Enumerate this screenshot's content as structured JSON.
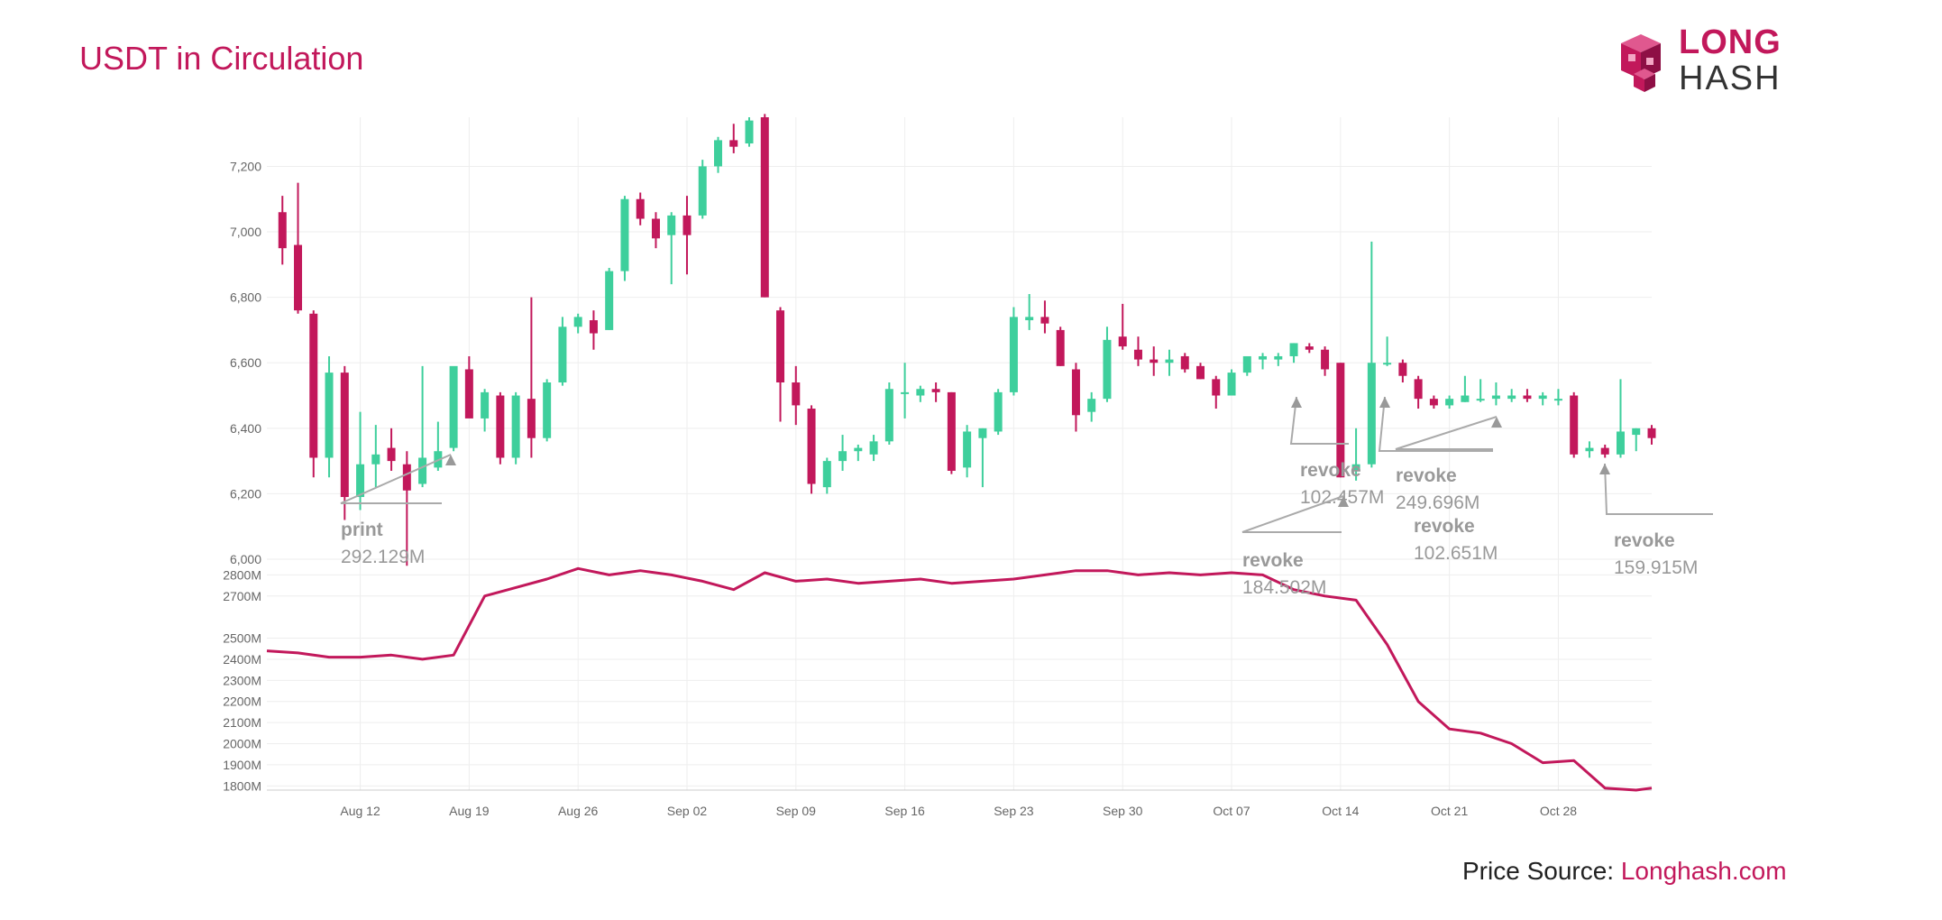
{
  "title": "USDT in Circulation",
  "logo": {
    "line1": "LONG",
    "line2": "HASH"
  },
  "source": {
    "label": "Price Source: ",
    "link": "Longhash.com"
  },
  "colors": {
    "up": "#3ecf9c",
    "down": "#c2185b",
    "supply": "#c2185b",
    "text": "#999999",
    "grid": "#eeeeee"
  },
  "chart_data": [
    {
      "type": "candlestick",
      "title": "",
      "y_ticks": [
        6000,
        6200,
        6400,
        6600,
        6800,
        7000,
        7200
      ],
      "y_tick_labels": [
        "6,000",
        "6,200",
        "6,400",
        "6,600",
        "6,800",
        "7,000",
        "7,200"
      ],
      "ylim": [
        6000,
        7350
      ],
      "date_range": [
        "Aug 06",
        "Nov 03"
      ],
      "candles": [
        {
          "d": "Aug 07",
          "o": 7060,
          "h": 7110,
          "l": 6900,
          "c": 6950
        },
        {
          "d": "Aug 08",
          "o": 6960,
          "h": 7150,
          "l": 6750,
          "c": 6760
        },
        {
          "d": "Aug 09",
          "o": 6750,
          "h": 6760,
          "l": 6250,
          "c": 6310
        },
        {
          "d": "Aug 10",
          "o": 6310,
          "h": 6620,
          "l": 6250,
          "c": 6570
        },
        {
          "d": "Aug 11",
          "o": 6570,
          "h": 6590,
          "l": 6120,
          "c": 6190
        },
        {
          "d": "Aug 12",
          "o": 6190,
          "h": 6450,
          "l": 6150,
          "c": 6290
        },
        {
          "d": "Aug 13",
          "o": 6290,
          "h": 6410,
          "l": 6220,
          "c": 6320
        },
        {
          "d": "Aug 14",
          "o": 6340,
          "h": 6400,
          "l": 6270,
          "c": 6300
        },
        {
          "d": "Aug 15",
          "o": 6290,
          "h": 6330,
          "l": 5980,
          "c": 6210
        },
        {
          "d": "Aug 16",
          "o": 6230,
          "h": 6590,
          "l": 6220,
          "c": 6310
        },
        {
          "d": "Aug 17",
          "o": 6280,
          "h": 6420,
          "l": 6270,
          "c": 6330
        },
        {
          "d": "Aug 18",
          "o": 6340,
          "h": 6580,
          "l": 6330,
          "c": 6590
        },
        {
          "d": "Aug 19",
          "o": 6580,
          "h": 6620,
          "l": 6440,
          "c": 6430
        },
        {
          "d": "Aug 20",
          "o": 6430,
          "h": 6520,
          "l": 6390,
          "c": 6510
        },
        {
          "d": "Aug 21",
          "o": 6500,
          "h": 6510,
          "l": 6290,
          "c": 6310
        },
        {
          "d": "Aug 22",
          "o": 6310,
          "h": 6510,
          "l": 6290,
          "c": 6500
        },
        {
          "d": "Aug 23",
          "o": 6490,
          "h": 6800,
          "l": 6310,
          "c": 6370
        },
        {
          "d": "Aug 24",
          "o": 6370,
          "h": 6550,
          "l": 6360,
          "c": 6540
        },
        {
          "d": "Aug 25",
          "o": 6540,
          "h": 6740,
          "l": 6530,
          "c": 6710
        },
        {
          "d": "Aug 26",
          "o": 6710,
          "h": 6750,
          "l": 6690,
          "c": 6740
        },
        {
          "d": "Aug 27",
          "o": 6730,
          "h": 6760,
          "l": 6640,
          "c": 6690
        },
        {
          "d": "Aug 28",
          "o": 6700,
          "h": 6890,
          "l": 6700,
          "c": 6880
        },
        {
          "d": "Aug 29",
          "o": 6880,
          "h": 7110,
          "l": 6850,
          "c": 7100
        },
        {
          "d": "Aug 30",
          "o": 7100,
          "h": 7120,
          "l": 7020,
          "c": 7040
        },
        {
          "d": "Aug 31",
          "o": 7040,
          "h": 7060,
          "l": 6950,
          "c": 6980
        },
        {
          "d": "Sep 01",
          "o": 6990,
          "h": 7060,
          "l": 6840,
          "c": 7050
        },
        {
          "d": "Sep 02",
          "o": 7050,
          "h": 7110,
          "l": 6870,
          "c": 6990
        },
        {
          "d": "Sep 03",
          "o": 7050,
          "h": 7220,
          "l": 7040,
          "c": 7200
        },
        {
          "d": "Sep 04",
          "o": 7200,
          "h": 7290,
          "l": 7180,
          "c": 7280
        },
        {
          "d": "Sep 05",
          "o": 7280,
          "h": 7330,
          "l": 7240,
          "c": 7260
        },
        {
          "d": "Sep 06",
          "o": 7270,
          "h": 7350,
          "l": 7260,
          "c": 7340
        },
        {
          "d": "Sep 07",
          "o": 7350,
          "h": 7360,
          "l": 6800,
          "c": 6800
        },
        {
          "d": "Sep 08",
          "o": 6760,
          "h": 6770,
          "l": 6420,
          "c": 6540
        },
        {
          "d": "Sep 09",
          "o": 6540,
          "h": 6590,
          "l": 6410,
          "c": 6470
        },
        {
          "d": "Sep 10",
          "o": 6460,
          "h": 6470,
          "l": 6200,
          "c": 6230
        },
        {
          "d": "Sep 11",
          "o": 6220,
          "h": 6310,
          "l": 6200,
          "c": 6300
        },
        {
          "d": "Sep 12",
          "o": 6300,
          "h": 6380,
          "l": 6270,
          "c": 6330
        },
        {
          "d": "Sep 13",
          "o": 6330,
          "h": 6350,
          "l": 6300,
          "c": 6340
        },
        {
          "d": "Sep 14",
          "o": 6320,
          "h": 6380,
          "l": 6300,
          "c": 6360
        },
        {
          "d": "Sep 15",
          "o": 6360,
          "h": 6540,
          "l": 6350,
          "c": 6520
        },
        {
          "d": "Sep 16",
          "o": 6510,
          "h": 6600,
          "l": 6430,
          "c": 6510
        },
        {
          "d": "Sep 17",
          "o": 6500,
          "h": 6530,
          "l": 6480,
          "c": 6520
        },
        {
          "d": "Sep 18",
          "o": 6520,
          "h": 6540,
          "l": 6480,
          "c": 6510
        },
        {
          "d": "Sep 19",
          "o": 6510,
          "h": 6510,
          "l": 6260,
          "c": 6270
        },
        {
          "d": "Sep 20",
          "o": 6280,
          "h": 6410,
          "l": 6250,
          "c": 6390
        },
        {
          "d": "Sep 21",
          "o": 6370,
          "h": 6400,
          "l": 6220,
          "c": 6400
        },
        {
          "d": "Sep 22",
          "o": 6390,
          "h": 6520,
          "l": 6380,
          "c": 6510
        },
        {
          "d": "Sep 23",
          "o": 6510,
          "h": 6770,
          "l": 6500,
          "c": 6740
        },
        {
          "d": "Sep 24",
          "o": 6730,
          "h": 6810,
          "l": 6700,
          "c": 6740
        },
        {
          "d": "Sep 25",
          "o": 6740,
          "h": 6790,
          "l": 6690,
          "c": 6720
        },
        {
          "d": "Sep 26",
          "o": 6700,
          "h": 6710,
          "l": 6590,
          "c": 6590
        },
        {
          "d": "Sep 27",
          "o": 6580,
          "h": 6600,
          "l": 6390,
          "c": 6440
        },
        {
          "d": "Sep 28",
          "o": 6450,
          "h": 6510,
          "l": 6420,
          "c": 6490
        },
        {
          "d": "Sep 29",
          "o": 6490,
          "h": 6710,
          "l": 6480,
          "c": 6670
        },
        {
          "d": "Sep 30",
          "o": 6680,
          "h": 6780,
          "l": 6640,
          "c": 6650
        },
        {
          "d": "Oct 01",
          "o": 6640,
          "h": 6680,
          "l": 6590,
          "c": 6610
        },
        {
          "d": "Oct 02",
          "o": 6610,
          "h": 6650,
          "l": 6560,
          "c": 6600
        },
        {
          "d": "Oct 03",
          "o": 6600,
          "h": 6640,
          "l": 6560,
          "c": 6610
        },
        {
          "d": "Oct 04",
          "o": 6620,
          "h": 6630,
          "l": 6570,
          "c": 6580
        },
        {
          "d": "Oct 05",
          "o": 6590,
          "h": 6600,
          "l": 6550,
          "c": 6550
        },
        {
          "d": "Oct 06",
          "o": 6550,
          "h": 6560,
          "l": 6460,
          "c": 6500
        },
        {
          "d": "Oct 07",
          "o": 6500,
          "h": 6580,
          "l": 6500,
          "c": 6570
        },
        {
          "d": "Oct 08",
          "o": 6570,
          "h": 6610,
          "l": 6560,
          "c": 6620
        },
        {
          "d": "Oct 09",
          "o": 6610,
          "h": 6630,
          "l": 6580,
          "c": 6620
        },
        {
          "d": "Oct 10",
          "o": 6610,
          "h": 6630,
          "l": 6590,
          "c": 6620
        },
        {
          "d": "Oct 11",
          "o": 6620,
          "h": 6660,
          "l": 6600,
          "c": 6660
        },
        {
          "d": "Oct 12",
          "o": 6650,
          "h": 6660,
          "l": 6630,
          "c": 6640
        },
        {
          "d": "Oct 13",
          "o": 6640,
          "h": 6650,
          "l": 6560,
          "c": 6580
        },
        {
          "d": "Oct 14",
          "o": 6600,
          "h": 6600,
          "l": 6250,
          "c": 6250
        },
        {
          "d": "Oct 15",
          "o": 6270,
          "h": 6400,
          "l": 6240,
          "c": 6290
        },
        {
          "d": "Oct 16",
          "o": 6290,
          "h": 6970,
          "l": 6280,
          "c": 6600
        },
        {
          "d": "Oct 17",
          "o": 6600,
          "h": 6680,
          "l": 6590,
          "c": 6600
        },
        {
          "d": "Oct 18",
          "o": 6600,
          "h": 6610,
          "l": 6540,
          "c": 6560
        },
        {
          "d": "Oct 19",
          "o": 6550,
          "h": 6560,
          "l": 6460,
          "c": 6490
        },
        {
          "d": "Oct 20",
          "o": 6490,
          "h": 6500,
          "l": 6460,
          "c": 6470
        },
        {
          "d": "Oct 21",
          "o": 6470,
          "h": 6500,
          "l": 6460,
          "c": 6490
        },
        {
          "d": "Oct 22",
          "o": 6480,
          "h": 6560,
          "l": 6480,
          "c": 6500
        },
        {
          "d": "Oct 23",
          "o": 6490,
          "h": 6550,
          "l": 6480,
          "c": 6490
        },
        {
          "d": "Oct 24",
          "o": 6490,
          "h": 6540,
          "l": 6470,
          "c": 6500
        },
        {
          "d": "Oct 25",
          "o": 6490,
          "h": 6520,
          "l": 6480,
          "c": 6500
        },
        {
          "d": "Oct 26",
          "o": 6500,
          "h": 6520,
          "l": 6480,
          "c": 6490
        },
        {
          "d": "Oct 27",
          "o": 6490,
          "h": 6510,
          "l": 6470,
          "c": 6500
        },
        {
          "d": "Oct 28",
          "o": 6490,
          "h": 6520,
          "l": 6470,
          "c": 6490
        },
        {
          "d": "Oct 29",
          "o": 6500,
          "h": 6510,
          "l": 6310,
          "c": 6320
        },
        {
          "d": "Oct 30",
          "o": 6330,
          "h": 6360,
          "l": 6310,
          "c": 6340
        },
        {
          "d": "Oct 31",
          "o": 6340,
          "h": 6350,
          "l": 6310,
          "c": 6320
        },
        {
          "d": "Nov 01",
          "o": 6320,
          "h": 6550,
          "l": 6310,
          "c": 6390
        },
        {
          "d": "Nov 02",
          "o": 6380,
          "h": 6400,
          "l": 6330,
          "c": 6400
        },
        {
          "d": "Nov 03",
          "o": 6400,
          "h": 6410,
          "l": 6350,
          "c": 6370
        }
      ],
      "annotations": [
        {
          "label": "print",
          "value": "292.129M",
          "d": "Aug 18",
          "price": 6260
        },
        {
          "label": "revoke",
          "value": "102.457M",
          "d": "Oct 16",
          "price": 6380
        },
        {
          "label": "revoke",
          "value": "184.502M",
          "d": "Oct 13",
          "price": 6520
        },
        {
          "label": "revoke",
          "value": "249.696M",
          "d": "Oct 25",
          "price": 6450
        },
        {
          "label": "revoke",
          "value": "102.651M",
          "d": "Oct 17",
          "price": 6510
        },
        {
          "label": "revoke",
          "value": "159.915M",
          "d": "Oct 31",
          "price": 6300
        }
      ]
    },
    {
      "type": "line",
      "title": "",
      "series_name": "",
      "y_ticks": [
        1800,
        1900,
        2000,
        2100,
        2200,
        2300,
        2400,
        2500,
        2700,
        2800
      ],
      "y_tick_labels": [
        "1800M",
        "1900M",
        "2000M",
        "2100M",
        "2200M",
        "2300M",
        "2400M",
        "2500M",
        "2700M",
        "2800M"
      ],
      "ylim": [
        1780,
        2840
      ],
      "x_ticks": [
        "Aug 12",
        "Aug 19",
        "Aug 26",
        "Sep 02",
        "Sep 09",
        "Sep 16",
        "Sep 23",
        "Sep 30",
        "Oct 07",
        "Oct 14",
        "Oct 21",
        "Oct 28"
      ],
      "x": [
        "Aug 06",
        "Aug 08",
        "Aug 10",
        "Aug 12",
        "Aug 14",
        "Aug 16",
        "Aug 18",
        "Aug 20",
        "Aug 22",
        "Aug 24",
        "Aug 26",
        "Aug 28",
        "Aug 30",
        "Sep 01",
        "Sep 03",
        "Sep 05",
        "Sep 07",
        "Sep 09",
        "Sep 11",
        "Sep 13",
        "Sep 15",
        "Sep 17",
        "Sep 19",
        "Sep 21",
        "Sep 23",
        "Sep 25",
        "Sep 27",
        "Sep 29",
        "Oct 01",
        "Oct 03",
        "Oct 05",
        "Oct 07",
        "Oct 09",
        "Oct 11",
        "Oct 13",
        "Oct 15",
        "Oct 17",
        "Oct 19",
        "Oct 21",
        "Oct 23",
        "Oct 25",
        "Oct 27",
        "Oct 29",
        "Oct 31",
        "Nov 02",
        "Nov 03"
      ],
      "values": [
        2440,
        2430,
        2410,
        2410,
        2420,
        2400,
        2420,
        2700,
        2740,
        2780,
        2830,
        2800,
        2820,
        2800,
        2770,
        2730,
        2810,
        2770,
        2780,
        2760,
        2770,
        2780,
        2760,
        2770,
        2780,
        2800,
        2820,
        2820,
        2800,
        2810,
        2800,
        2810,
        2800,
        2730,
        2700,
        2680,
        2470,
        2200,
        2070,
        2050,
        2000,
        1910,
        1920,
        1790,
        1780,
        1790
      ]
    }
  ]
}
